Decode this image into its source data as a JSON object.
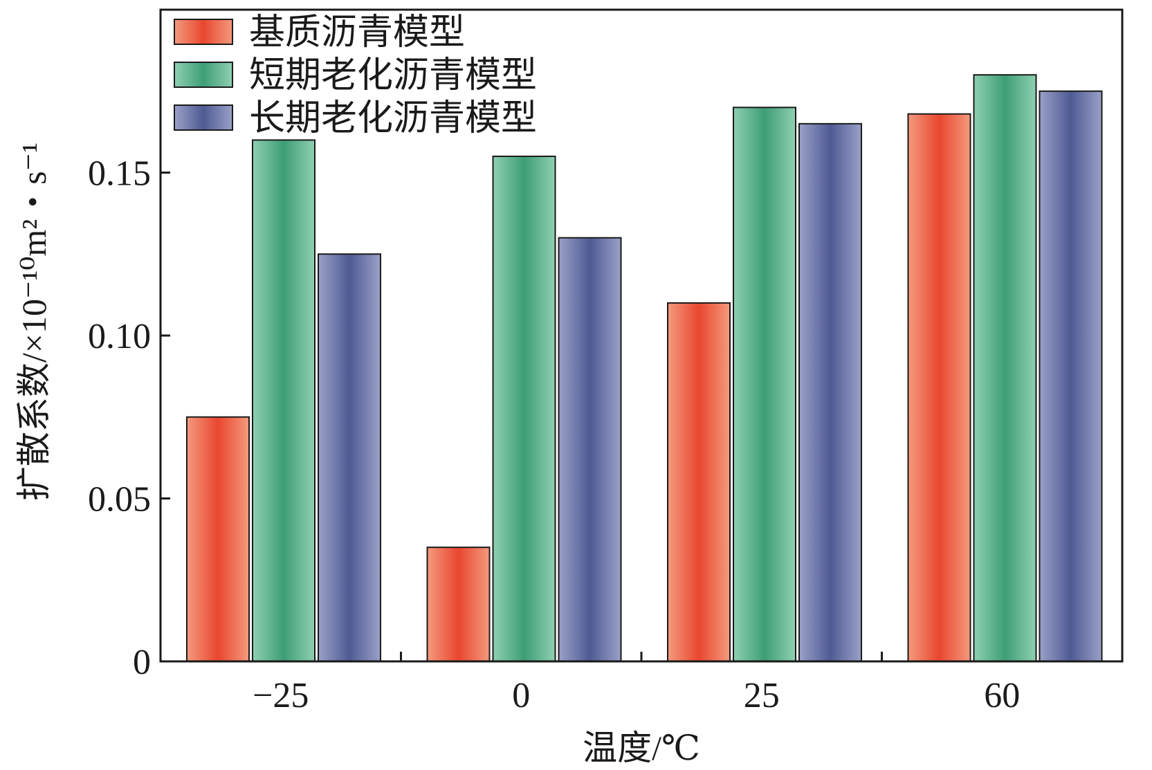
{
  "chart_data": {
    "type": "bar",
    "title": "",
    "xlabel": "温度/℃",
    "ylabel": "扩散系数/×10⁻¹⁰m²・s⁻¹",
    "categories": [
      "−25",
      "0",
      "25",
      "60"
    ],
    "series": [
      {
        "name": "基质沥青模型",
        "values": [
          0.075,
          0.035,
          0.11,
          0.168
        ]
      },
      {
        "name": "短期老化沥青模型",
        "values": [
          0.16,
          0.155,
          0.17,
          0.18
        ]
      },
      {
        "name": "长期老化沥青模型",
        "values": [
          0.125,
          0.13,
          0.165,
          0.175
        ]
      }
    ],
    "ylim": [
      0,
      0.2
    ],
    "yticks": [
      0,
      0.05,
      0.1,
      0.15
    ],
    "ytick_labels": [
      "0",
      "0.05",
      "0.10",
      "0.15"
    ],
    "grid": false,
    "legend_position": "top-left",
    "colors": {
      "series": [
        "#e8472f",
        "#3e9e76",
        "#4f5a93"
      ],
      "series_light": [
        "#f49a7e",
        "#8fd0b2",
        "#9aa1c8"
      ]
    }
  }
}
